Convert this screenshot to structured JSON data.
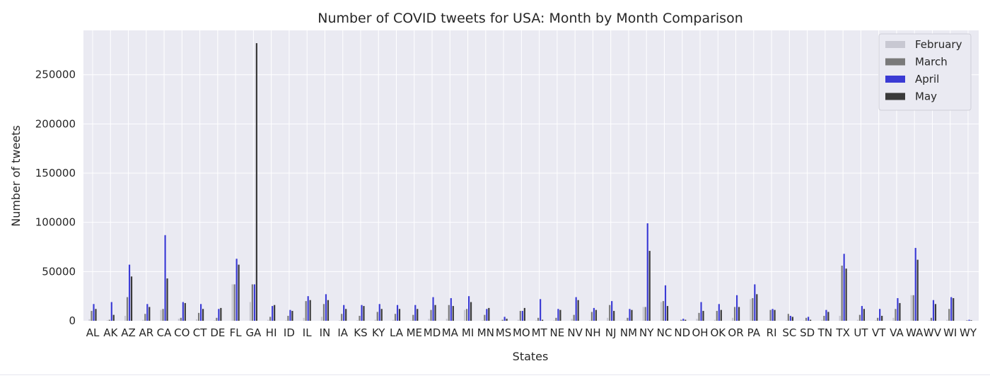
{
  "chart_data": {
    "type": "bar",
    "title": "Number of COVID tweets for USA: Month by Month Comparison",
    "xlabel": "States",
    "ylabel": "Number of tweets",
    "ylim": [
      0,
      295000
    ],
    "yticks": [
      0,
      50000,
      100000,
      150000,
      200000,
      250000
    ],
    "grid": true,
    "legend_position": "top-right",
    "categories": [
      "AL",
      "AK",
      "AZ",
      "AR",
      "CA",
      "CO",
      "CT",
      "DE",
      "FL",
      "GA",
      "HI",
      "ID",
      "IL",
      "IN",
      "IA",
      "KS",
      "KY",
      "LA",
      "ME",
      "MD",
      "MA",
      "MI",
      "MN",
      "MS",
      "MO",
      "MT",
      "NE",
      "NV",
      "NH",
      "NJ",
      "NM",
      "NY",
      "NC",
      "ND",
      "OH",
      "OK",
      "OR",
      "PA",
      "RI",
      "SC",
      "SD",
      "TN",
      "TX",
      "UT",
      "VT",
      "VA",
      "WA",
      "WV",
      "WI",
      "WY"
    ],
    "series": [
      {
        "name": "February",
        "color": "#c8c8d2",
        "values": [
          1500,
          500,
          5000,
          1000,
          11000,
          2000,
          1500,
          500,
          37000,
          19000,
          1000,
          500,
          3000,
          4000,
          500,
          500,
          1000,
          1000,
          500,
          2000,
          2000,
          11000,
          500,
          300,
          1000,
          500,
          500,
          2000,
          500,
          3000,
          500,
          14000,
          19000,
          100,
          2000,
          1000,
          3000,
          22000,
          500,
          500,
          300,
          1000,
          5000,
          1000,
          500,
          3000,
          26000,
          500,
          1000,
          100
        ]
      },
      {
        "name": "March",
        "color": "#7a7a7a",
        "values": [
          10000,
          1000,
          24000,
          7000,
          12000,
          3000,
          8000,
          3000,
          37000,
          37000,
          4000,
          5000,
          20000,
          17000,
          7000,
          5000,
          9000,
          7000,
          6000,
          11000,
          16000,
          12000,
          6000,
          1000,
          10000,
          3000,
          3000,
          6000,
          9000,
          16000,
          3000,
          14000,
          20000,
          1000,
          8000,
          10000,
          14000,
          23000,
          11000,
          7000,
          3000,
          5000,
          56000,
          6000,
          3000,
          12000,
          26000,
          3000,
          12000,
          500
        ]
      },
      {
        "name": "April",
        "color": "#3b3bd4",
        "values": [
          17000,
          19000,
          57000,
          17000,
          87000,
          19000,
          17000,
          12000,
          63000,
          37000,
          15000,
          11000,
          25000,
          27000,
          16000,
          16000,
          17000,
          16000,
          16000,
          24000,
          23000,
          25000,
          12000,
          4000,
          10000,
          22000,
          12000,
          24000,
          13000,
          20000,
          12000,
          99000,
          36000,
          2000,
          19000,
          17000,
          26000,
          37000,
          12000,
          5000,
          4000,
          11000,
          68000,
          15000,
          12000,
          23000,
          74000,
          21000,
          24000,
          1000
        ]
      },
      {
        "name": "May",
        "color": "#3a3a3a",
        "values": [
          12000,
          6000,
          45000,
          14000,
          43000,
          18000,
          12000,
          13000,
          57000,
          282000,
          16000,
          10000,
          21000,
          21000,
          12000,
          15000,
          12000,
          12000,
          12000,
          16000,
          15000,
          19000,
          13000,
          2000,
          13000,
          1000,
          11000,
          21000,
          11000,
          10000,
          11000,
          71000,
          15000,
          1000,
          10000,
          11000,
          14000,
          27000,
          11000,
          4000,
          1000,
          9000,
          53000,
          12000,
          5000,
          18000,
          62000,
          17000,
          23000,
          500
        ]
      }
    ]
  }
}
